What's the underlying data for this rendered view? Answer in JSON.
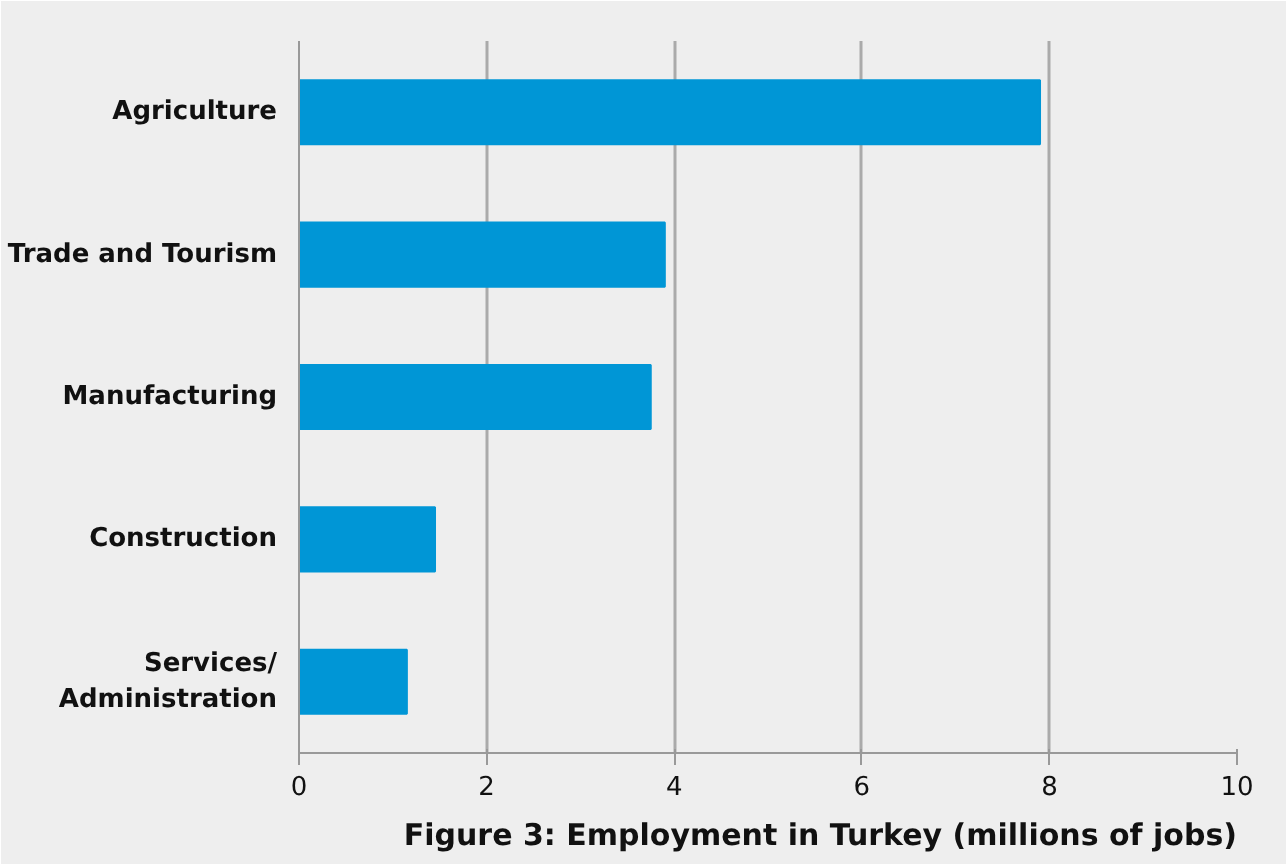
{
  "chart_data": {
    "type": "bar",
    "orientation": "horizontal",
    "title": "Figure 3: Employment in Turkey (millions of jobs)",
    "categories": [
      "Agriculture",
      "Trade and Tourism",
      "Manufacturing",
      "Construction",
      "Services/\nAdministration"
    ],
    "values": [
      7.9,
      3.9,
      3.75,
      1.45,
      1.15
    ],
    "color": "#0096d6",
    "xlim": [
      0,
      10
    ],
    "xticks": [
      0,
      2,
      4,
      6,
      8,
      10
    ],
    "grid": "x"
  }
}
